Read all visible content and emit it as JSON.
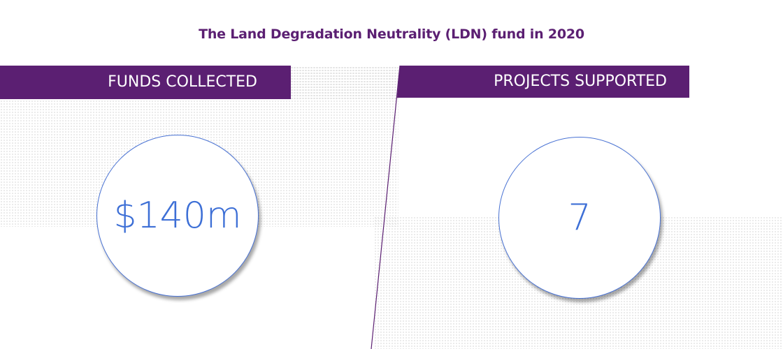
{
  "title": "The Land Degradation Neutrality (LDN) fund in 2020",
  "panels": {
    "left": {
      "label": "FUNDS COLLECTED",
      "value": "$140m"
    },
    "right": {
      "label": "PROJECTS SUPPORTED",
      "value": "7"
    }
  },
  "colors": {
    "brand_purple": "#5b1f72",
    "value_blue": "#3d6fd6"
  }
}
